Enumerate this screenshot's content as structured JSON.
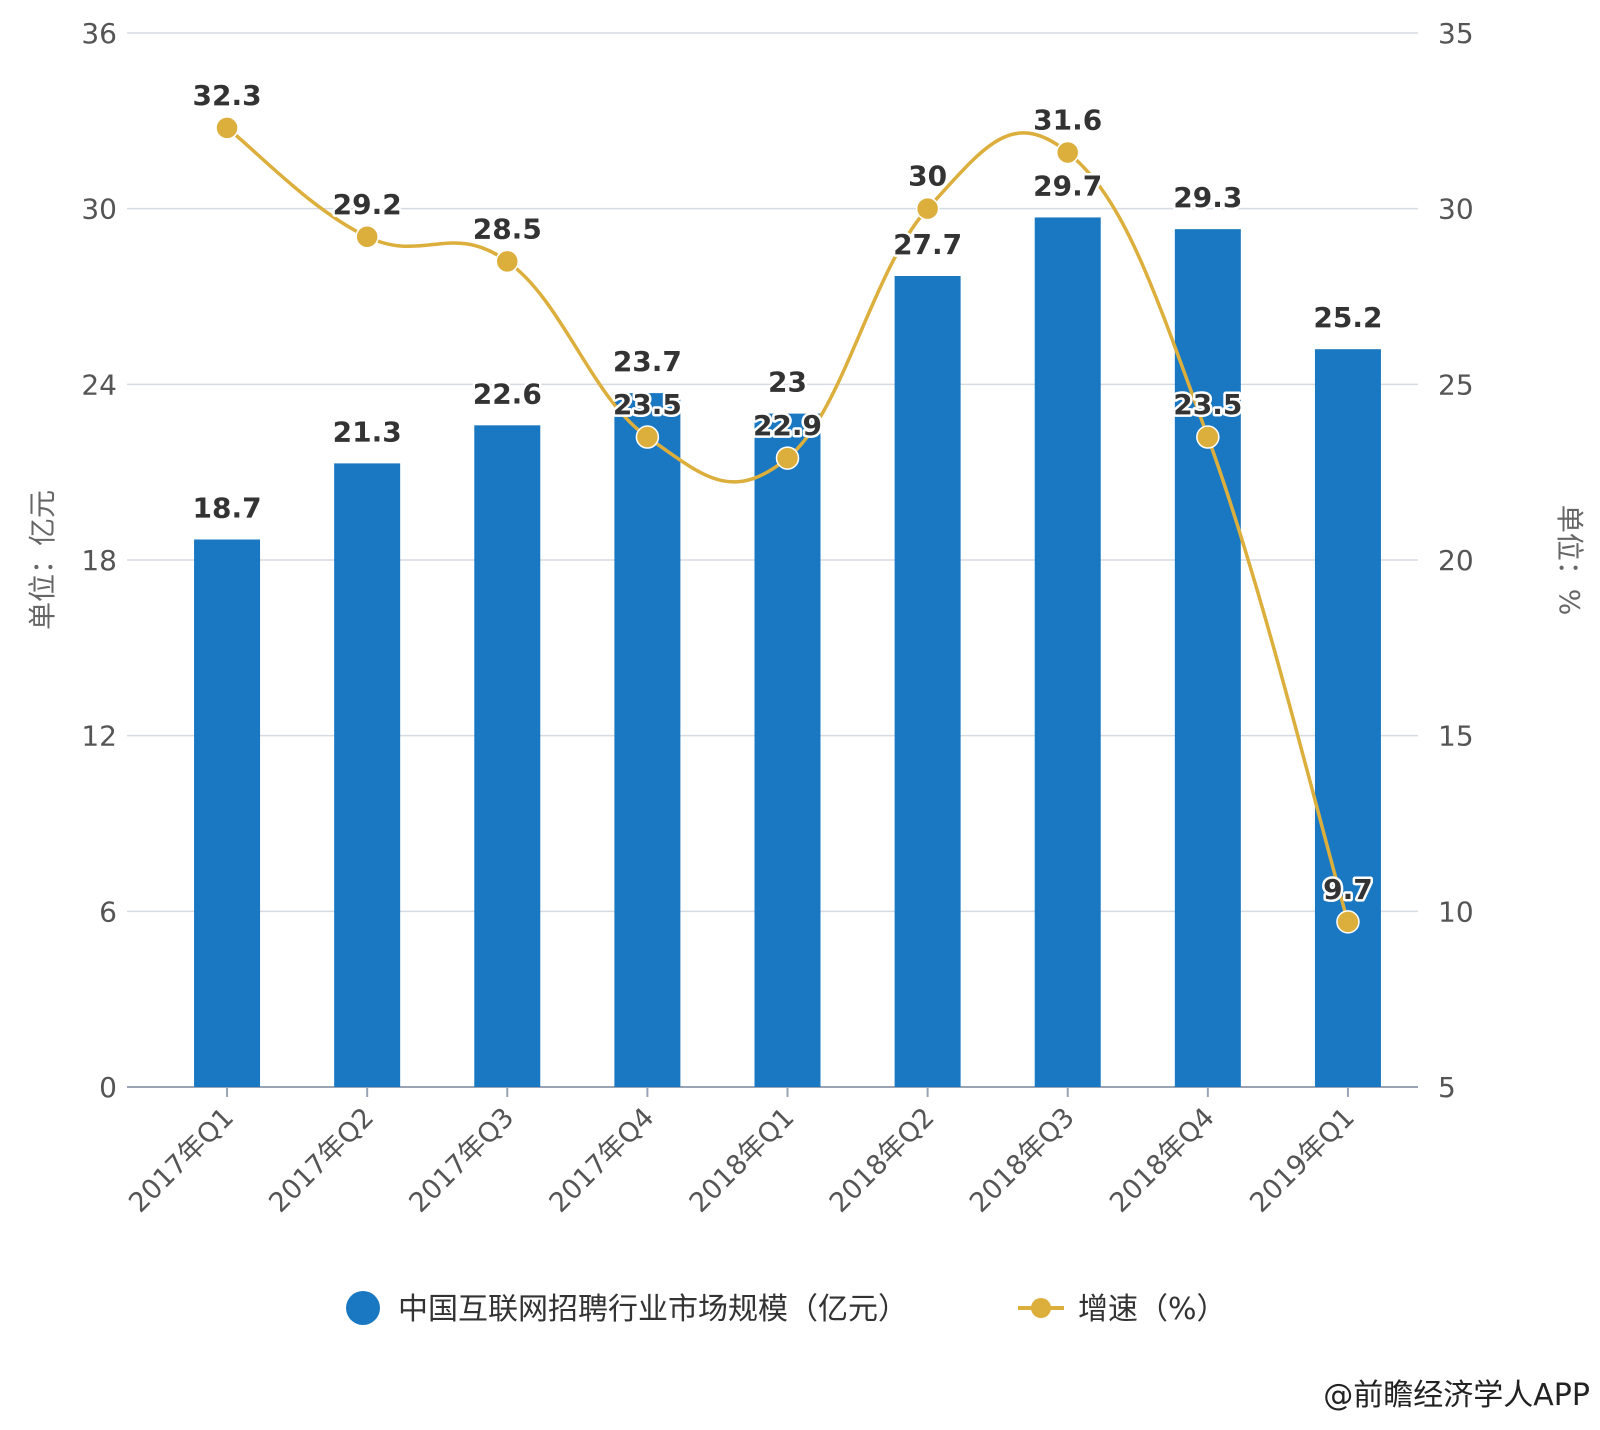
{
  "chart_data": {
    "type": "bar",
    "categories": [
      "2017年Q1",
      "2017年Q2",
      "2017年Q3",
      "2017年Q4",
      "2018年Q1",
      "2018年Q2",
      "2018年Q3",
      "2018年Q4",
      "2019年Q1"
    ],
    "series": [
      {
        "name": "中国互联网招聘行业市场规模（亿元）",
        "type": "bar",
        "axis": "left",
        "values": [
          18.7,
          21.3,
          22.6,
          23.7,
          23,
          27.7,
          29.7,
          29.3,
          25.2
        ],
        "color": "#1a78c2"
      },
      {
        "name": "增速（%）",
        "type": "line",
        "axis": "right",
        "values": [
          32.3,
          29.2,
          28.5,
          23.5,
          22.9,
          30,
          31.6,
          23.5,
          9.7
        ],
        "color": "#dcae3c"
      }
    ],
    "ylabel_left": "单位：亿元",
    "ylabel_right": "单位：%",
    "ylim_left": [
      0,
      36
    ],
    "yticks_left": [
      0,
      6,
      12,
      18,
      24,
      30,
      36
    ],
    "ylim_right": [
      5,
      35
    ],
    "yticks_right": [
      5,
      10,
      15,
      20,
      25,
      30,
      35
    ],
    "grid": true,
    "legend_position": "bottom"
  },
  "credit": "@前瞻经济学人APP"
}
